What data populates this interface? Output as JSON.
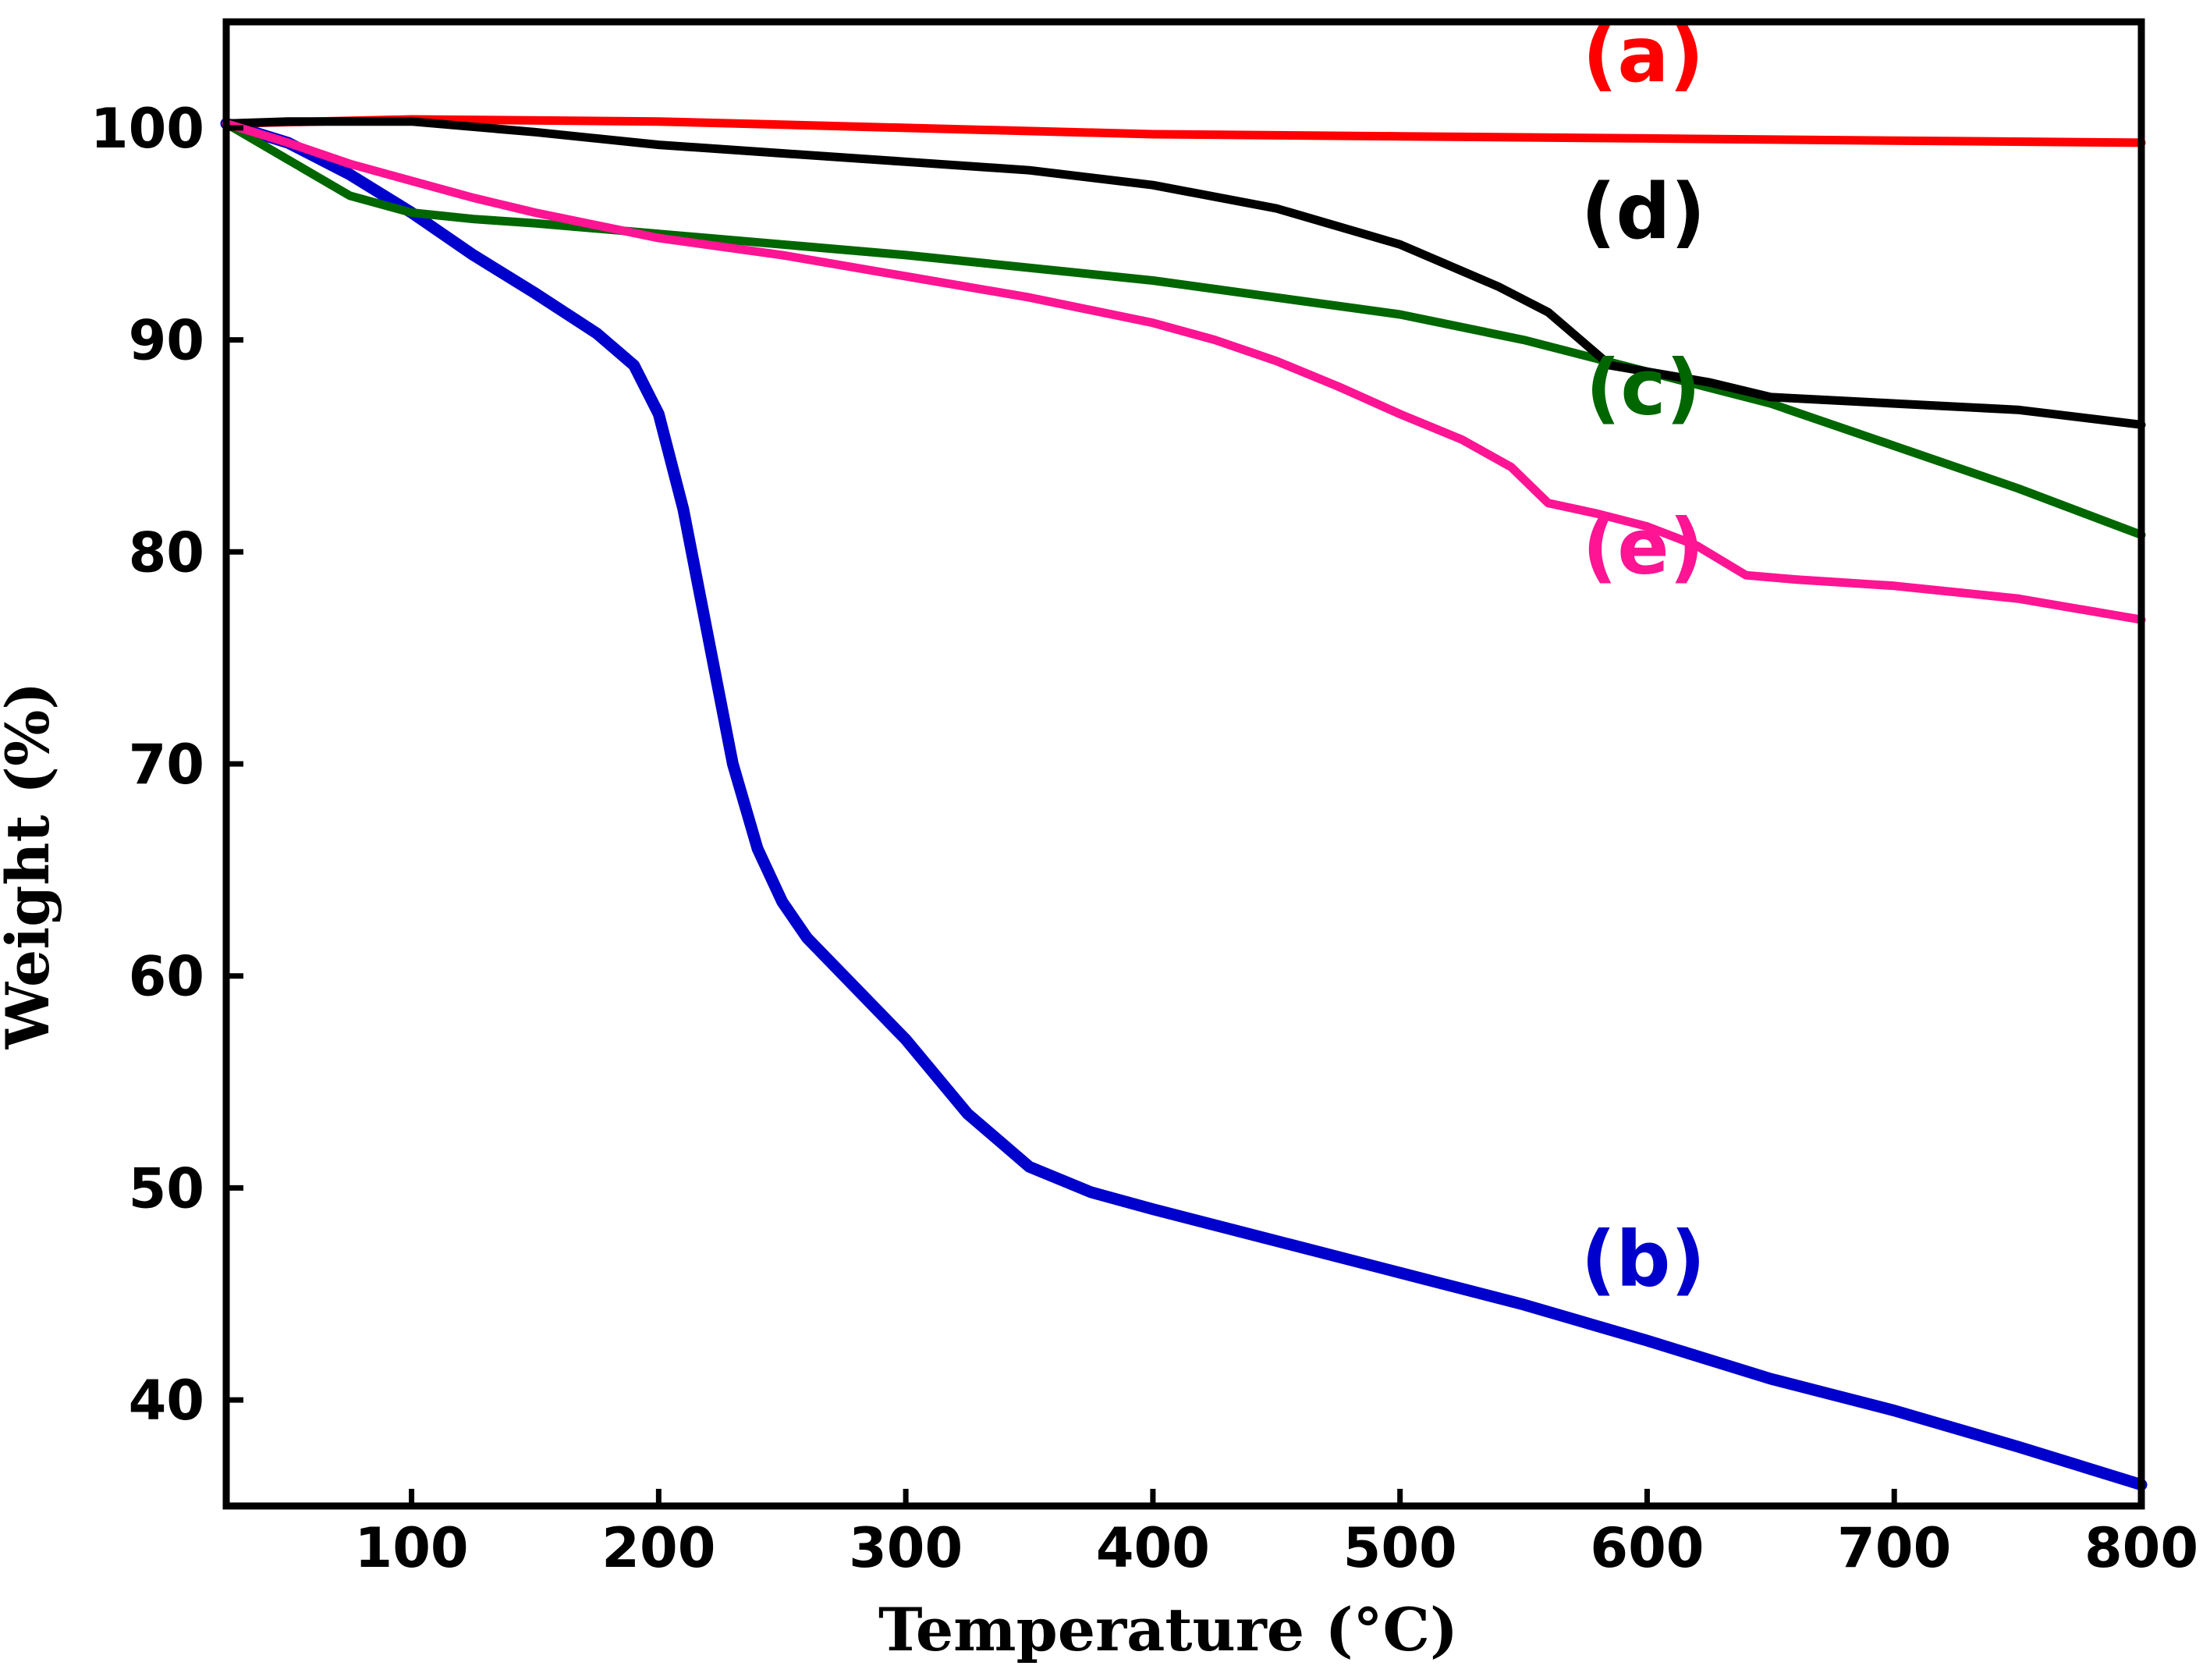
{
  "chart_data": {
    "type": "line",
    "title": "",
    "xlabel": "Temperature (°C)",
    "ylabel": "Weight (%)",
    "xlim": [
      25,
      800
    ],
    "ylim": [
      35,
      105
    ],
    "xticks": [
      100,
      200,
      300,
      400,
      500,
      600,
      700,
      800
    ],
    "xtick_labels": [
      "100",
      "200",
      "300",
      "400",
      "500",
      "600",
      "700",
      "800"
    ],
    "yticks": [
      40,
      50,
      60,
      70,
      80,
      90,
      100
    ],
    "ytick_labels": [
      "40",
      "50",
      "60",
      "70",
      "80",
      "90",
      "100"
    ],
    "grid": false,
    "series": [
      {
        "name": "(a)",
        "color": "#ff0000",
        "x": [
          25,
          100,
          200,
          300,
          400,
          500,
          600,
          700,
          800
        ],
        "y": [
          100.2,
          100.4,
          100.3,
          100.0,
          99.7,
          99.6,
          99.5,
          99.4,
          99.3
        ]
      },
      {
        "name": "(b)",
        "color": "#0000cc",
        "x": [
          25,
          50,
          75,
          100,
          125,
          150,
          175,
          190,
          200,
          210,
          220,
          230,
          240,
          250,
          260,
          275,
          300,
          325,
          350,
          375,
          400,
          450,
          500,
          550,
          600,
          650,
          700,
          750,
          800
        ],
        "y": [
          100.2,
          99.3,
          97.8,
          96.0,
          94.0,
          92.2,
          90.3,
          88.8,
          86.5,
          82.0,
          76.0,
          70.0,
          66.0,
          63.5,
          61.8,
          60.0,
          57.0,
          53.5,
          51.0,
          49.8,
          49.0,
          47.5,
          46.0,
          44.5,
          42.8,
          41.0,
          39.5,
          37.8,
          36.0
        ]
      },
      {
        "name": "(c)",
        "color": "#006600",
        "x": [
          25,
          50,
          75,
          100,
          125,
          150,
          200,
          300,
          400,
          500,
          550,
          600,
          650,
          700,
          750,
          800
        ],
        "y": [
          100.2,
          98.5,
          96.8,
          96.0,
          95.7,
          95.5,
          95.0,
          94.0,
          92.8,
          91.2,
          90.0,
          88.5,
          87.0,
          85.0,
          83.0,
          80.8
        ]
      },
      {
        "name": "(d)",
        "color": "#000000",
        "x": [
          25,
          50,
          100,
          150,
          200,
          250,
          300,
          350,
          400,
          450,
          500,
          540,
          560,
          575,
          585,
          600,
          625,
          650,
          700,
          750,
          800
        ],
        "y": [
          100.2,
          100.3,
          100.3,
          99.8,
          99.2,
          98.8,
          98.4,
          98.0,
          97.3,
          96.2,
          94.5,
          92.5,
          91.3,
          89.8,
          88.8,
          88.5,
          88.0,
          87.3,
          87.0,
          86.7,
          86.0
        ]
      },
      {
        "name": "(e)",
        "color": "#ff1493",
        "x": [
          25,
          50,
          75,
          100,
          125,
          150,
          175,
          200,
          250,
          300,
          350,
          400,
          425,
          450,
          475,
          500,
          525,
          545,
          560,
          580,
          600,
          620,
          640,
          660,
          700,
          750,
          800
        ],
        "y": [
          100.2,
          99.3,
          98.3,
          97.5,
          96.7,
          96.0,
          95.4,
          94.8,
          94.0,
          93.0,
          92.0,
          90.8,
          90.0,
          89.0,
          87.8,
          86.5,
          85.3,
          84.0,
          82.3,
          81.8,
          81.2,
          80.3,
          78.9,
          78.7,
          78.4,
          77.8,
          76.8
        ]
      }
    ],
    "annotations": [
      {
        "text": "(a)",
        "x": 600,
        "y": 102.2,
        "color": "#ff0000"
      },
      {
        "text": "(d)",
        "x": 600,
        "y": 94.8,
        "color": "#000000"
      },
      {
        "text": "(c)",
        "x": 600,
        "y": 86.5,
        "color": "#006600"
      },
      {
        "text": "(e)",
        "x": 600,
        "y": 79.0,
        "color": "#ff1493"
      },
      {
        "text": "(b)",
        "x": 600,
        "y": 45.4,
        "color": "#0000cc"
      }
    ]
  }
}
